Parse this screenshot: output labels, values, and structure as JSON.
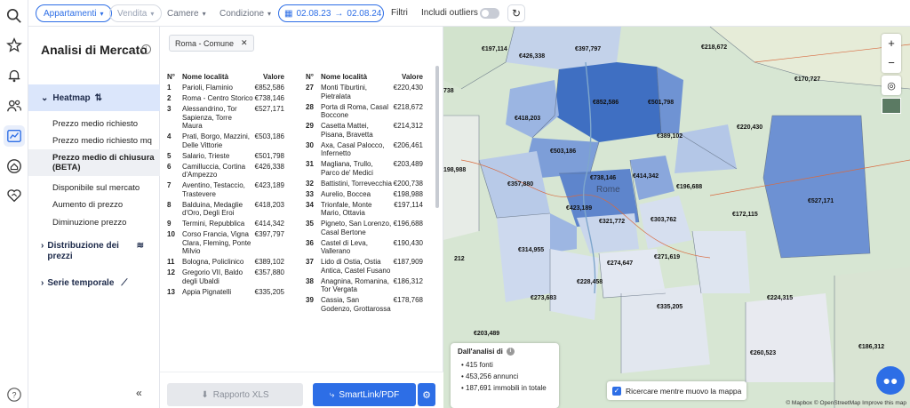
{
  "topbar": {
    "property_type": "Appartamenti",
    "contract": "Vendita",
    "rooms": "Camere",
    "condition": "Condizione",
    "date_from": "02.08.23",
    "date_to": "02.08.24",
    "filters_label": "Filtri",
    "outliers_label": "Includi outliers"
  },
  "sidebar": {
    "title": "Analisi di Mercato",
    "heatmap_label": "Heatmap",
    "items": [
      {
        "label": "Prezzo medio richiesto"
      },
      {
        "label": "Prezzo medio richiesto mq"
      },
      {
        "label": "Prezzo medio di chiusura (BETA)"
      },
      {
        "label": "Disponibile sul mercato"
      },
      {
        "label": "Aumento di prezzo"
      },
      {
        "label": "Diminuzione prezzo"
      }
    ],
    "sections": [
      {
        "label": "Distribuzione dei prezzi"
      },
      {
        "label": "Serie temporale"
      }
    ]
  },
  "list": {
    "filter_tag": "Roma - Comune",
    "headers": {
      "n": "N°",
      "name": "Nome località",
      "value": "Valore"
    },
    "left": [
      {
        "n": "1",
        "name": "Parioli, Flaminio",
        "value": "€852,586"
      },
      {
        "n": "2",
        "name": "Roma - Centro Storico",
        "value": "€738,146"
      },
      {
        "n": "3",
        "name": "Alessandrino, Tor Sapienza, Torre Maura",
        "value": "€527,171"
      },
      {
        "n": "4",
        "name": "Prati, Borgo, Mazzini, Delle Vittorie",
        "value": "€503,186"
      },
      {
        "n": "5",
        "name": "Salario, Trieste",
        "value": "€501,798"
      },
      {
        "n": "6",
        "name": "Camilluccia, Cortina d'Ampezzo",
        "value": "€426,338"
      },
      {
        "n": "7",
        "name": "Aventino, Testaccio, Trastevere",
        "value": "€423,189"
      },
      {
        "n": "8",
        "name": "Balduina, Medaglie d'Oro, Degli Eroi",
        "value": "€418,203"
      },
      {
        "n": "9",
        "name": "Termini, Repubblica",
        "value": "€414,342"
      },
      {
        "n": "10",
        "name": "Corso Francia, Vigna Clara, Fleming, Ponte Milvio",
        "value": "€397,797"
      },
      {
        "n": "11",
        "name": "Bologna, Policlinico",
        "value": "€389,102"
      },
      {
        "n": "12",
        "name": "Gregorio VII, Baldo degli Ubaldi",
        "value": "€357,880"
      },
      {
        "n": "13",
        "name": "Appia Pignatelli",
        "value": "€335,205"
      }
    ],
    "right": [
      {
        "n": "27",
        "name": "Monti Tiburtini, Pietralata",
        "value": "€220,430"
      },
      {
        "n": "28",
        "name": "Porta di Roma, Casal Boccone",
        "value": "€218,672"
      },
      {
        "n": "29",
        "name": "Casetta Mattei, Pisana, Bravetta",
        "value": "€214,312"
      },
      {
        "n": "30",
        "name": "Axa, Casal Palocco, Infernetto",
        "value": "€206,461"
      },
      {
        "n": "31",
        "name": "Magliana, Trullo, Parco de' Medici",
        "value": "€203,489"
      },
      {
        "n": "32",
        "name": "Battistini, Torrevecchia",
        "value": "€200,738"
      },
      {
        "n": "33",
        "name": "Aurelio, Boccea",
        "value": "€198,988"
      },
      {
        "n": "34",
        "name": "Trionfale, Monte Mario, Ottavia",
        "value": "€197,114"
      },
      {
        "n": "35",
        "name": "Pigneto, San Lorenzo, Casal Bertone",
        "value": "€196,688"
      },
      {
        "n": "36",
        "name": "Castel di Leva, Vallerano",
        "value": "€190,430"
      },
      {
        "n": "37",
        "name": "Lido di Ostia, Ostia Antica, Castel Fusano",
        "value": "€187,909"
      },
      {
        "n": "38",
        "name": "Anagnina, Romanina, Tor Vergata",
        "value": "€186,312"
      },
      {
        "n": "39",
        "name": "Cassia, San Godenzo, Grottarossa",
        "value": "€178,768"
      }
    ],
    "btn_xls": "Rapporto XLS",
    "btn_smart": "SmartLink/PDF"
  },
  "map": {
    "labels": [
      {
        "text": "€197,114"
      },
      {
        "text": "€397,797"
      },
      {
        "text": "€426,338"
      },
      {
        "text": "€218,672"
      },
      {
        "text": "€852,586"
      },
      {
        "text": "€501,798"
      },
      {
        "text": "€170,727"
      },
      {
        "text": "€418,203"
      },
      {
        "text": "€389,102"
      },
      {
        "text": "€220,430"
      },
      {
        "text": "€503,186"
      },
      {
        "text": "€738,146"
      },
      {
        "text": "€414,342"
      },
      {
        "text": "€357,880"
      },
      {
        "text": "€196,688"
      },
      {
        "text": "€527,171"
      },
      {
        "text": "€423,189"
      },
      {
        "text": "€321,772"
      },
      {
        "text": "€303,762"
      },
      {
        "text": "€172,115"
      },
      {
        "text": "€314,955"
      },
      {
        "text": "€274,647"
      },
      {
        "text": "€271,619"
      },
      {
        "text": "€228,458"
      },
      {
        "text": "€273,683"
      },
      {
        "text": "€335,205"
      },
      {
        "text": "€224,315"
      },
      {
        "text": "€203,489"
      },
      {
        "text": "€260,523"
      },
      {
        "text": "€186,312"
      },
      {
        "text": "198,988"
      },
      {
        "text": "738"
      },
      {
        "text": "212"
      }
    ],
    "place_rome": "Rome",
    "stats_title": "Dall'analisi di",
    "stats": [
      "415 fonti",
      "453,256 annunci",
      "187,691 immobili in totale"
    ],
    "checkbox_label": "Ricercare mentre muovo la mappa",
    "attribution": "© Mapbox © OpenStreetMap  Improve this map"
  }
}
